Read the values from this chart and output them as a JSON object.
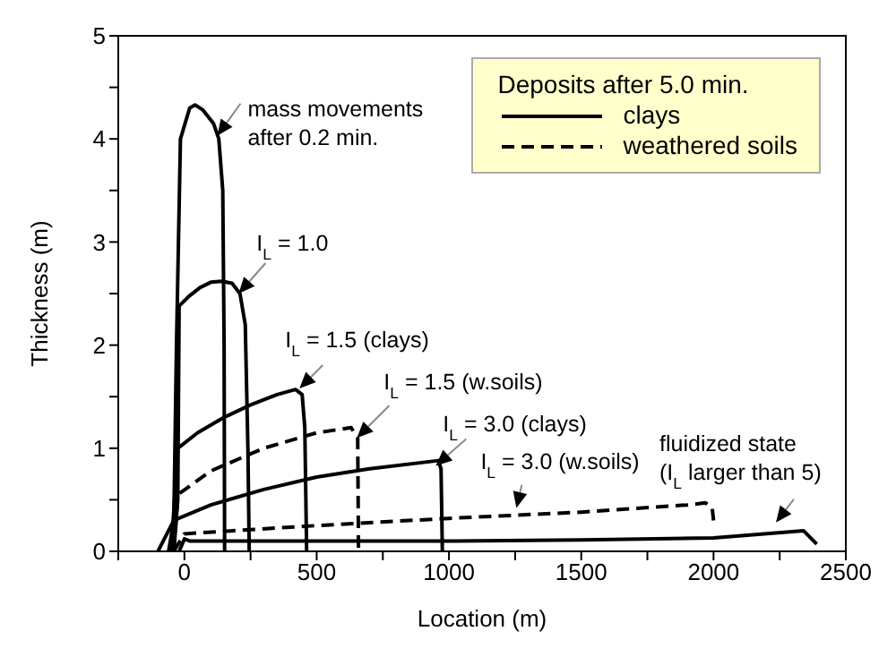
{
  "chart_data": {
    "type": "line",
    "xlabel": "Location (m)",
    "ylabel": "Thickness (m)",
    "legend_title": "Deposits after 5.0 min.",
    "legend": "top right",
    "grid": false,
    "marker": "none",
    "xlim": [
      -250,
      2500
    ],
    "xticks": [
      {
        "value": -250,
        "label": null
      },
      0,
      {
        "value": 250,
        "label": null
      },
      500,
      {
        "value": 750,
        "label": null
      },
      1000,
      {
        "value": 1250,
        "label": null
      },
      1500,
      {
        "value": 1750,
        "label": null
      },
      2000,
      {
        "value": 2250,
        "label": null
      },
      2500
    ],
    "ylim": [
      0,
      5
    ],
    "yticks": [
      0,
      {
        "value": 0.5,
        "label": null
      },
      1,
      {
        "value": 1.5,
        "label": null
      },
      2,
      {
        "value": 2.5,
        "label": null
      },
      3,
      {
        "value": 3.5,
        "label": null
      },
      4,
      {
        "value": 4.5,
        "label": null
      },
      5
    ],
    "series": [
      {
        "color": "#000000",
        "line_style": "solid",
        "x": [
          -100,
          -40,
          -30,
          -15,
          20,
          40,
          70,
          110,
          130,
          145,
          150,
          152
        ],
        "values": [
          0,
          0.3,
          2,
          4.0,
          4.3,
          4.33,
          4.28,
          4.15,
          4.0,
          3.5,
          2,
          0
        ]
      },
      {
        "name": "clays",
        "color": "#000000",
        "line_style": "solid",
        "x": [
          -40,
          -25,
          -20,
          20,
          60,
          100,
          140,
          180,
          210,
          230,
          240,
          245
        ],
        "values": [
          0,
          0.5,
          2.38,
          2.48,
          2.56,
          2.61,
          2.62,
          2.6,
          2.5,
          2.2,
          1.0,
          0
        ]
      },
      {
        "color": "#000000",
        "line_style": "solid",
        "x": [
          -50,
          -25,
          50,
          150,
          250,
          350,
          420,
          445,
          455,
          462
        ],
        "values": [
          0,
          1.0,
          1.15,
          1.3,
          1.42,
          1.52,
          1.57,
          1.52,
          1.2,
          0
        ]
      },
      {
        "name": "weathered soils",
        "color": "#000000",
        "line_style": "dashed",
        "x": [
          -40,
          -25,
          100,
          300,
          500,
          630,
          655,
          658
        ],
        "values": [
          0,
          0.55,
          0.78,
          1.0,
          1.15,
          1.2,
          1.1,
          0
        ]
      },
      {
        "color": "#000000",
        "line_style": "solid",
        "x": [
          -60,
          -40,
          100,
          300,
          500,
          700,
          960,
          970,
          975
        ],
        "values": [
          0,
          0.3,
          0.45,
          0.6,
          0.72,
          0.8,
          0.88,
          0.8,
          0
        ]
      },
      {
        "color": "#000000",
        "line_style": "dashed",
        "x": [
          -40,
          0,
          500,
          1000,
          1500,
          1900,
          1970,
          1995,
          2000
        ],
        "values": [
          0,
          0.17,
          0.25,
          0.32,
          0.38,
          0.45,
          0.47,
          0.42,
          0.3
        ]
      },
      {
        "color": "#000000",
        "line_style": "solid",
        "x": [
          -20,
          0,
          20,
          500,
          1000,
          1500,
          2000,
          2340,
          2390
        ],
        "values": [
          0,
          0.12,
          0.1,
          0.1,
          0.1,
          0.11,
          0.13,
          0.2,
          0.07
        ]
      }
    ],
    "annotations": [
      {
        "text": "mass movements\nafter 0.2 min.",
        "x": 124,
        "y": 4.03
      },
      {
        "text": "I$_{L}$ = 1.0",
        "x": 205,
        "y": 2.5
      },
      {
        "text": "I$_{L}$ = 1.5 (clays)",
        "x": 435,
        "y": 1.58
      },
      {
        "text": "I$_{L}$ = 1.5 (w.soils)",
        "x": 652,
        "y": 1.1
      },
      {
        "text": "I$_{L}$ = 3.0 (clays)",
        "x": 950,
        "y": 0.83
      },
      {
        "text": "I$_{L}$ = 3.0 (w.soils)",
        "x": 1255,
        "y": 0.42
      },
      {
        "text": "fluidized state\n(I$_{L}$ larger than 5)",
        "x": 2236,
        "y": 0.28
      }
    ]
  }
}
